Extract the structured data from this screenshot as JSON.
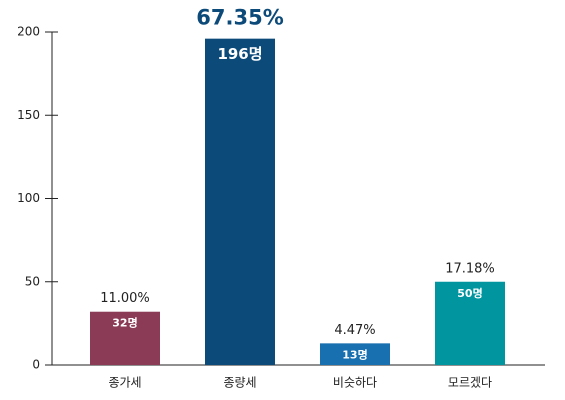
{
  "chart_data": {
    "type": "bar",
    "categories": [
      "종가세",
      "종량세",
      "비슷하다",
      "모르겠다"
    ],
    "values": [
      32,
      196,
      13,
      50
    ],
    "value_labels": [
      "32명",
      "196명",
      "13명",
      "50명"
    ],
    "share_labels": [
      "11.00%",
      "67.35%",
      "4.47%",
      "17.18%"
    ],
    "colors": [
      "#8b3b55",
      "#0c4a7a",
      "#1870b0",
      "#00959f"
    ],
    "ylim": [
      0,
      200
    ],
    "yticks": [
      0,
      50,
      100,
      150,
      200
    ],
    "grid": false
  }
}
